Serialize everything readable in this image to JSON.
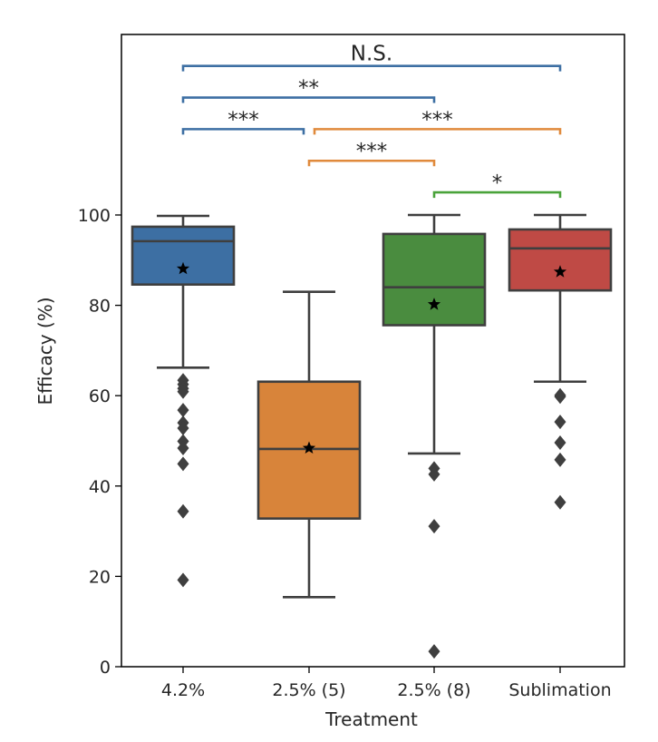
{
  "chart_data": {
    "type": "box",
    "xlabel": "Treatment",
    "ylabel": "Efficacy (%)",
    "ylim": [
      0,
      140
    ],
    "yticks": [
      0,
      20,
      40,
      60,
      80,
      100
    ],
    "categories": [
      "4.2%",
      "2.5% (5)",
      "2.5% (8)",
      "Sublimation"
    ],
    "boxes": [
      {
        "category": "4.2%",
        "color": "#3d6fa3",
        "whisker_low": 66.2,
        "q1": 84.6,
        "median": 94.2,
        "q3": 97.4,
        "whisker_high": 99.8,
        "mean": 88.1,
        "outliers": [
          63.4,
          62.5,
          61.6,
          60.9,
          56.8,
          54.0,
          52.8,
          49.9,
          48.4,
          44.9,
          34.4,
          19.2
        ]
      },
      {
        "category": "2.5% (5)",
        "color": "#d8843a",
        "whisker_low": 15.4,
        "q1": 32.8,
        "median": 48.2,
        "q3": 63.1,
        "whisker_high": 83.0,
        "mean": 48.4,
        "outliers": []
      },
      {
        "category": "2.5% (8)",
        "color": "#4a8c3f",
        "whisker_low": 47.2,
        "q1": 75.6,
        "median": 84.0,
        "q3": 95.8,
        "whisker_high": 100.0,
        "mean": 80.2,
        "outliers": [
          43.9,
          42.6,
          31.1,
          3.4
        ]
      },
      {
        "category": "Sublimation",
        "color": "#bf4a45",
        "whisker_low": 63.1,
        "q1": 83.3,
        "median": 92.6,
        "q3": 96.8,
        "whisker_high": 100.0,
        "mean": 87.4,
        "outliers": [
          60.1,
          59.8,
          54.2,
          49.6,
          45.8,
          36.4
        ]
      }
    ],
    "significance_brackets": [
      {
        "from": "4.2%",
        "to": "Sublimation",
        "label": "N.S.",
        "color": "#3d6fa3",
        "y": 133.0
      },
      {
        "from": "4.2%",
        "to": "2.5% (8)",
        "label": "**",
        "color": "#3d6fa3",
        "y": 126.0
      },
      {
        "from": "4.2%",
        "to": "2.5% (5)",
        "label": "***",
        "color": "#3d6fa3",
        "y": 119.0
      },
      {
        "from": "2.5% (5)",
        "to": "Sublimation",
        "label": "***",
        "color": "#e08a3c",
        "y": 119.0
      },
      {
        "from": "2.5% (5)",
        "to": "2.5% (8)",
        "label": "***",
        "color": "#e08a3c",
        "y": 112.0
      },
      {
        "from": "2.5% (8)",
        "to": "Sublimation",
        "label": "*",
        "color": "#4aa33a",
        "y": 105.0
      }
    ]
  }
}
